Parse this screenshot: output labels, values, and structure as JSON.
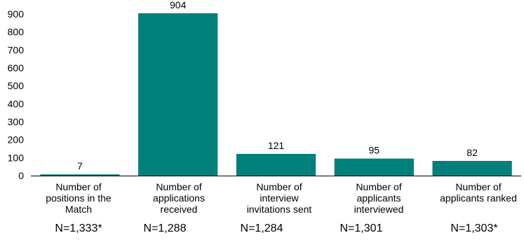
{
  "chart_data": {
    "type": "bar",
    "categories": [
      "Number of\npositions in the\nMatch",
      "Number of\napplications\nreceived",
      "Number of\ninterview\ninvitations sent",
      "Number of\napplicants\ninterviewed",
      "Number of\napplicants ranked"
    ],
    "values": [
      7,
      904,
      121,
      95,
      82
    ],
    "n_labels": [
      "N=1,333*",
      "N=1,288",
      "N=1,284",
      "N=1,301",
      "N=1,303*"
    ],
    "yticks": [
      0,
      100,
      200,
      300,
      400,
      500,
      600,
      700,
      800,
      900
    ],
    "ylim": [
      0,
      900
    ],
    "bar_color": "#007f7b",
    "title": "",
    "xlabel": "",
    "ylabel": ""
  }
}
